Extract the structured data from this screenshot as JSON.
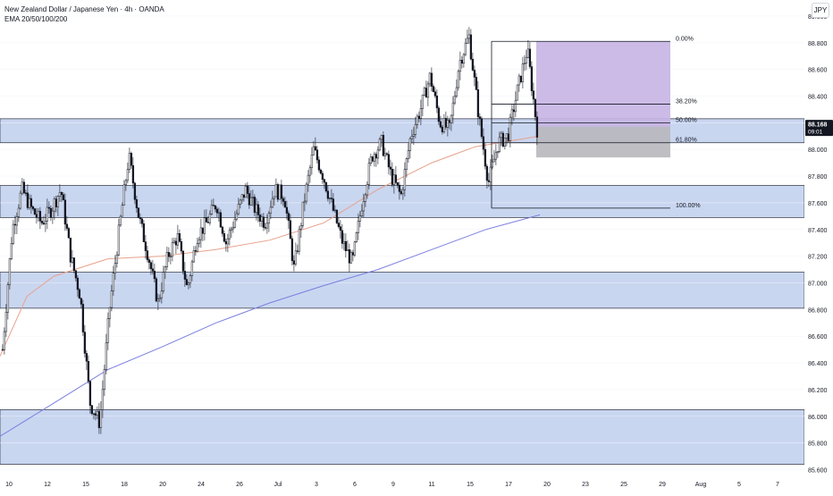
{
  "legend": {
    "title": "New Zealand Dollar / Japanese Yen · 4h · OANDA",
    "indicator": "EMA 20/50/100/200"
  },
  "currency_button": "JPY",
  "last_price": {
    "value": "88.168",
    "countdown": "09:01"
  },
  "colors": {
    "zone_fill": "#c9d6f0",
    "zone_border": "#2a2e39",
    "ema_fast": "#e8a08a",
    "ema_slow": "#7b7fe0",
    "target_box": "#c7b4e3",
    "stop_box": "#b8b8bc",
    "candle": "#131722",
    "price_label_bg": "#131722"
  },
  "chart_data": {
    "type": "candlestick",
    "symbol": "New Zealand Dollar / Japanese Yen",
    "timeframe": "4h",
    "ylim": [
      85.57,
      89.12
    ],
    "y_ticks": [
      "89.000",
      "88.800",
      "88.600",
      "88.400",
      "88.200",
      "88.000",
      "87.800",
      "87.600",
      "87.400",
      "87.200",
      "87.000",
      "86.800",
      "86.600",
      "86.400",
      "86.200",
      "86.000",
      "85.800",
      "85.600"
    ],
    "x_ticks": [
      "10",
      "12",
      "15",
      "18",
      "20",
      "24",
      "26",
      "Jul",
      "3",
      "6",
      "9",
      "11",
      "15",
      "17",
      "20",
      "23",
      "25",
      "29",
      "Aug",
      "5",
      "7"
    ],
    "zones": [
      {
        "top": 88.23,
        "bottom": 88.05
      },
      {
        "top": 87.73,
        "bottom": 87.49
      },
      {
        "top": 87.08,
        "bottom": 86.81
      },
      {
        "top": 86.05,
        "bottom": 85.64
      }
    ],
    "fibonacci": [
      {
        "level": "0.00%",
        "price": 88.81
      },
      {
        "level": "38.20%",
        "price": 88.34
      },
      {
        "level": "50.00%",
        "price": 88.2
      },
      {
        "level": "61.80%",
        "price": 88.05
      },
      {
        "level": "100.00%",
        "price": 87.56
      }
    ],
    "position": {
      "entry": 88.17,
      "target": 88.81,
      "stop": 87.94
    },
    "ema_fast": [
      [
        0,
        86.45
      ],
      [
        0.05,
        86.9
      ],
      [
        0.1,
        87.05
      ],
      [
        0.2,
        87.18
      ],
      [
        0.3,
        87.2
      ],
      [
        0.4,
        87.25
      ],
      [
        0.5,
        87.32
      ],
      [
        0.6,
        87.45
      ],
      [
        0.7,
        87.7
      ],
      [
        0.8,
        87.9
      ],
      [
        0.88,
        88.02
      ],
      [
        1,
        88.1
      ]
    ],
    "ema_slow": [
      [
        0,
        85.85
      ],
      [
        0.1,
        86.1
      ],
      [
        0.2,
        86.35
      ],
      [
        0.3,
        86.52
      ],
      [
        0.4,
        86.7
      ],
      [
        0.5,
        86.85
      ],
      [
        0.6,
        86.98
      ],
      [
        0.7,
        87.1
      ],
      [
        0.8,
        87.25
      ],
      [
        0.9,
        87.4
      ],
      [
        1,
        87.51
      ]
    ],
    "close_path": [
      86.5,
      87.4,
      87.7,
      87.55,
      87.45,
      87.55,
      87.7,
      87.2,
      86.9,
      86.1,
      85.95,
      86.8,
      87.4,
      87.95,
      87.5,
      87.2,
      86.85,
      87.2,
      87.35,
      86.95,
      87.35,
      87.45,
      87.6,
      87.3,
      87.5,
      87.7,
      87.55,
      87.45,
      87.7,
      87.65,
      87.1,
      87.6,
      88.0,
      87.8,
      87.55,
      87.3,
      87.15,
      87.6,
      87.95,
      88.05,
      87.8,
      87.65,
      88.1,
      88.3,
      88.55,
      88.2,
      88.15,
      88.65,
      88.85,
      88.25,
      87.75,
      88.05,
      88.1,
      88.45,
      88.75,
      88.15
    ]
  }
}
